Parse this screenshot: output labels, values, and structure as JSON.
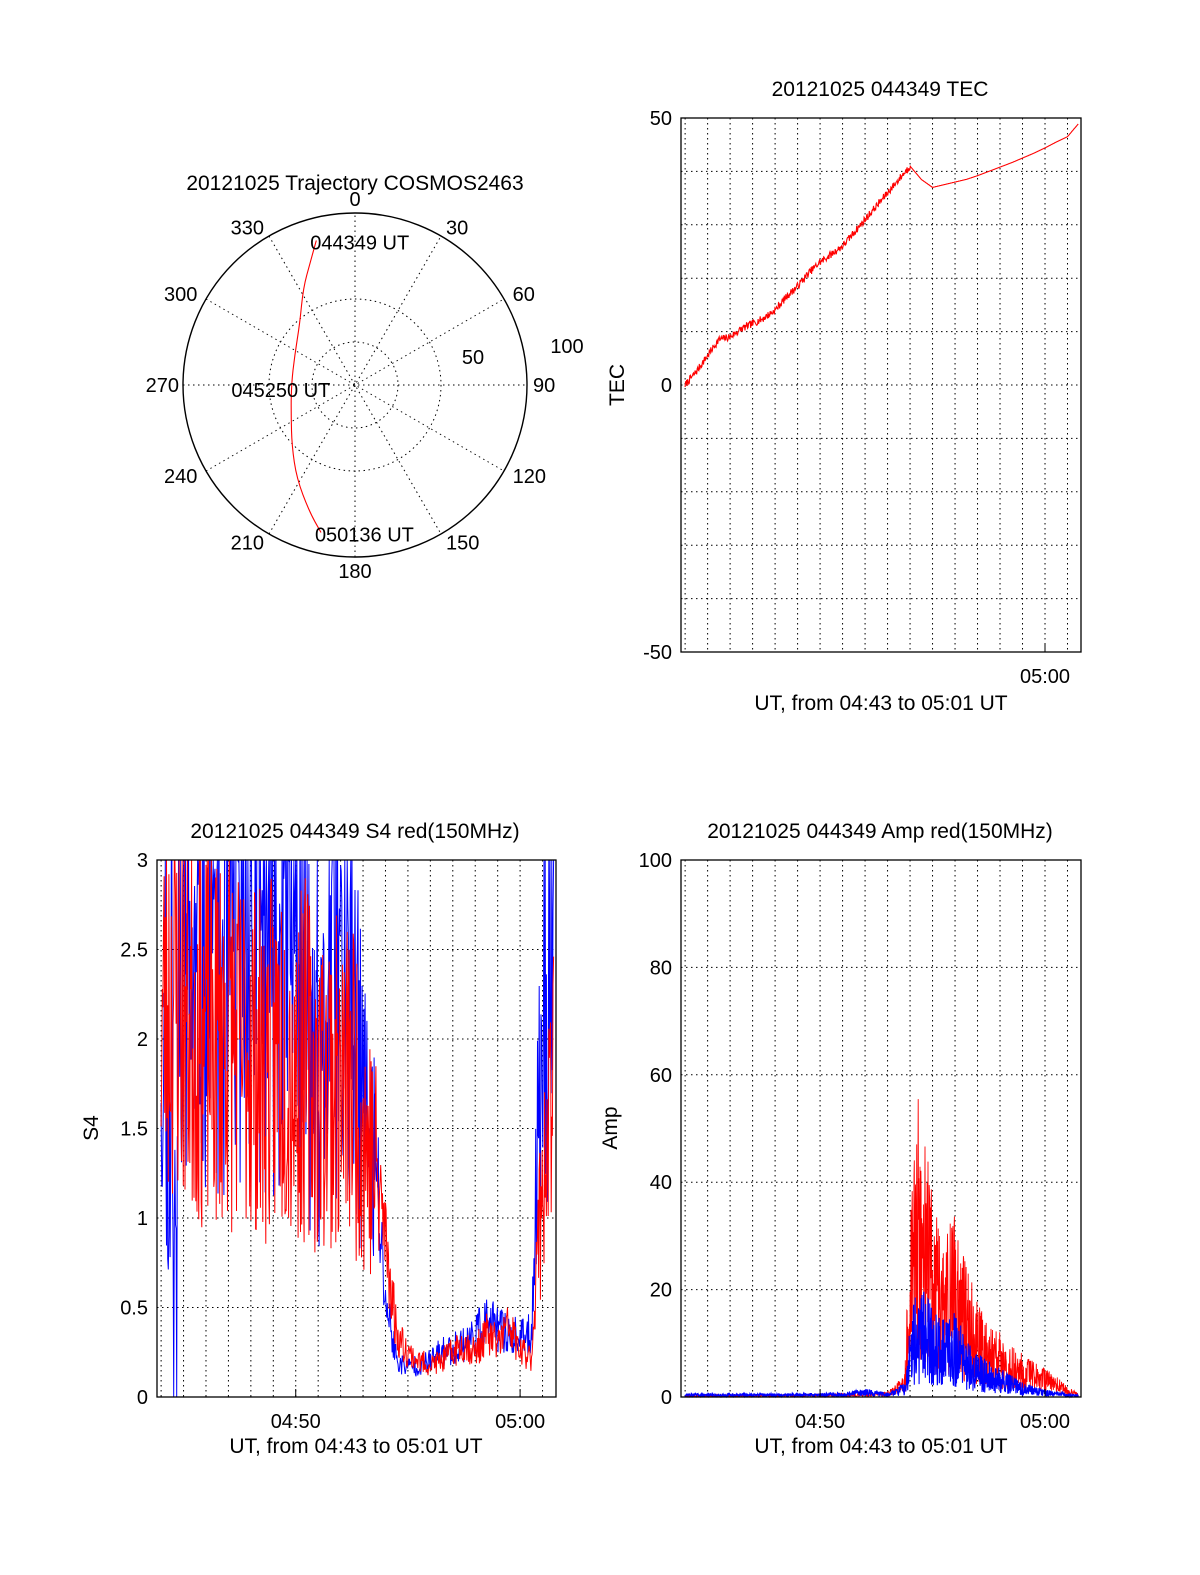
{
  "colors": {
    "red": "#ff0000",
    "blue": "#0000ff",
    "axis": "#000000"
  },
  "chart_data": [
    {
      "id": "trajectory",
      "type": "polar",
      "title": "20121025 Trajectory COSMOS2463",
      "angle_labels": [
        "0",
        "30",
        "60",
        "90",
        "120",
        "150",
        "180",
        "210",
        "240",
        "270",
        "300",
        "330"
      ],
      "radial_range": [
        0,
        100
      ],
      "radial_labels": [
        "50",
        "100"
      ],
      "grid": true,
      "series": [
        {
          "color": "red",
          "points": [
            {
              "az": 345,
              "r": 87
            },
            {
              "az": 340,
              "r": 76
            },
            {
              "az": 332,
              "r": 64
            },
            {
              "az": 318,
              "r": 48
            },
            {
              "az": 296,
              "r": 39
            },
            {
              "az": 270,
              "r": 37
            },
            {
              "az": 245,
              "r": 41
            },
            {
              "az": 226,
              "r": 51
            },
            {
              "az": 212,
              "r": 64
            },
            {
              "az": 200,
              "r": 78
            },
            {
              "az": 193,
              "r": 88
            }
          ]
        }
      ],
      "annotations": [
        {
          "text": "044349 UT",
          "az": 345,
          "r": 87
        },
        {
          "text": "045250 UT",
          "az": 270,
          "r": 37
        },
        {
          "text": "050136 UT",
          "az": 193,
          "r": 88
        }
      ]
    },
    {
      "id": "tec",
      "type": "line",
      "title": "20121025 044349 TEC",
      "xlabel": "UT, from 04:43 to 05:01 UT",
      "ylabel": "TEC",
      "xlim": [
        "04:43:49",
        "05:01:36"
      ],
      "ylim": [
        -50,
        50
      ],
      "x_ticks": [
        "05:00"
      ],
      "y_ticks": [
        -50,
        0,
        50
      ],
      "grid": true,
      "series": [
        {
          "color": "red",
          "x": [
            "04:44:00",
            "04:44:30",
            "04:45:00",
            "04:45:30",
            "04:46:00",
            "04:46:30",
            "04:47:00",
            "04:47:30",
            "04:48:00",
            "04:48:30",
            "04:49:00",
            "04:49:30",
            "04:50:00",
            "04:50:30",
            "04:51:00",
            "04:51:30",
            "04:52:00",
            "04:52:30",
            "04:53:00",
            "04:53:30",
            "04:54:00",
            "04:54:30",
            "04:55:00",
            "04:55:30",
            "04:56:00",
            "04:56:30",
            "04:57:00",
            "04:57:30",
            "04:58:00",
            "04:58:30",
            "04:59:00",
            "04:59:30",
            "05:00:00",
            "05:00:30",
            "05:01:00",
            "05:01:30"
          ],
          "values": [
            0,
            2.5,
            5.5,
            8.5,
            9,
            10.5,
            11.5,
            12.5,
            14,
            16.5,
            18.5,
            21,
            23,
            24.5,
            26,
            28.5,
            31,
            33.5,
            36,
            38.5,
            41,
            38.5,
            37,
            37.5,
            38,
            38.5,
            39.2,
            40,
            40.8,
            41.6,
            42.5,
            43.4,
            44.4,
            45.5,
            46.5,
            49
          ]
        }
      ]
    },
    {
      "id": "s4",
      "type": "line",
      "title": "20121025 044349 S4 red(150MHz)",
      "xlabel": "UT, from 04:43 to 05:01 UT",
      "ylabel": "S4",
      "xlim": [
        "04:43:49",
        "05:01:36"
      ],
      "ylim": [
        0,
        3
      ],
      "x_ticks": [
        "04:50",
        "05:00"
      ],
      "y_ticks": [
        "0",
        "0.5",
        "1",
        "1.5",
        "2",
        "2.5",
        "3"
      ],
      "grid": true,
      "series": [
        {
          "color": "blue",
          "x": [
            "04:44:00",
            "04:44:30",
            "04:45:00",
            "04:45:30",
            "04:46:00",
            "04:46:30",
            "04:47:00",
            "04:47:30",
            "04:48:00",
            "04:48:30",
            "04:49:00",
            "04:49:30",
            "04:50:00",
            "04:50:30",
            "04:51:00",
            "04:51:30",
            "04:52:00",
            "04:52:30",
            "04:53:00",
            "04:53:30",
            "04:54:00",
            "04:54:30",
            "04:55:00",
            "04:55:30",
            "04:56:00",
            "04:56:30",
            "04:57:00",
            "04:57:30",
            "04:58:00",
            "04:58:30",
            "04:59:00",
            "04:59:30",
            "05:00:00",
            "05:00:30",
            "05:01:00",
            "05:01:30"
          ],
          "values": [
            2.3,
            1.0,
            2.6,
            2.2,
            2.5,
            2.4,
            2.3,
            2.5,
            2.6,
            2.5,
            2.5,
            2.6,
            2.4,
            2.2,
            1.4,
            2.4,
            2.3,
            2.1,
            1.6,
            1.3,
            0.55,
            0.2,
            0.17,
            0.18,
            0.2,
            0.25,
            0.27,
            0.3,
            0.35,
            0.42,
            0.38,
            0.35,
            0.32,
            0.35,
            2.2,
            2.7
          ]
        },
        {
          "color": "red",
          "x": [
            "04:44:00",
            "04:44:30",
            "04:45:00",
            "04:45:30",
            "04:46:00",
            "04:46:30",
            "04:47:00",
            "04:47:30",
            "04:48:00",
            "04:48:30",
            "04:49:00",
            "04:49:30",
            "04:50:00",
            "04:50:30",
            "04:51:00",
            "04:51:30",
            "04:52:00",
            "04:52:30",
            "04:53:00",
            "04:53:30",
            "04:54:00",
            "04:54:30",
            "04:55:00",
            "04:55:30",
            "04:56:00",
            "04:56:30",
            "04:57:00",
            "04:57:30",
            "04:58:00",
            "04:58:30",
            "04:59:00",
            "04:59:30",
            "05:00:00",
            "05:00:30",
            "05:01:00",
            "05:01:30"
          ],
          "values": [
            2.1,
            2.3,
            2.2,
            2.1,
            2.0,
            2.0,
            2.1,
            1.9,
            2.0,
            1.8,
            1.9,
            2.0,
            1.8,
            1.9,
            1.7,
            1.8,
            1.7,
            1.8,
            1.5,
            1.3,
            0.9,
            0.35,
            0.25,
            0.2,
            0.18,
            0.2,
            0.25,
            0.3,
            0.25,
            0.35,
            0.3,
            0.4,
            0.25,
            0.22,
            1.3,
            1.6
          ]
        }
      ]
    },
    {
      "id": "amp",
      "type": "line",
      "title": "20121025 044349 Amp red(150MHz)",
      "xlabel": "UT, from 04:43 to 05:01 UT",
      "ylabel": "Amp",
      "xlim": [
        "04:43:49",
        "05:01:36"
      ],
      "ylim": [
        0,
        100
      ],
      "x_ticks": [
        "04:50",
        "05:00"
      ],
      "y_ticks": [
        "0",
        "20",
        "40",
        "60",
        "80",
        "100"
      ],
      "grid": true,
      "series": [
        {
          "color": "red",
          "x": [
            "04:44:00",
            "04:48:00",
            "04:51:00",
            "04:53:00",
            "04:53:45",
            "04:54:00",
            "04:54:20",
            "04:54:40",
            "04:55:00",
            "04:55:30",
            "04:56:00",
            "04:56:30",
            "04:57:00",
            "04:57:30",
            "04:58:00",
            "04:58:30",
            "04:59:00",
            "04:59:30",
            "05:00:00",
            "05:00:30",
            "05:01:00",
            "05:01:30"
          ],
          "values": [
            0.3,
            0.3,
            0.5,
            0.8,
            3,
            25,
            42,
            36,
            28,
            22,
            26,
            18,
            14,
            11,
            9,
            7,
            6,
            5,
            4,
            3,
            1.5,
            0.5
          ]
        },
        {
          "color": "blue",
          "x": [
            "04:44:00",
            "04:48:00",
            "04:51:00",
            "04:52:00",
            "04:53:00",
            "04:53:45",
            "04:54:00",
            "04:54:20",
            "04:54:40",
            "04:55:00",
            "04:55:30",
            "04:56:00",
            "04:56:30",
            "04:57:00",
            "04:57:30",
            "04:58:00",
            "04:58:30",
            "04:59:00",
            "04:59:30",
            "05:00:00",
            "05:00:30",
            "05:01:00",
            "05:01:30"
          ],
          "values": [
            0.5,
            0.5,
            0.6,
            1.2,
            0.6,
            2,
            10,
            16,
            15,
            13,
            11,
            12,
            8,
            6,
            5,
            4,
            3,
            2,
            1.5,
            1,
            0.8,
            0.5,
            0.3
          ]
        }
      ]
    }
  ]
}
